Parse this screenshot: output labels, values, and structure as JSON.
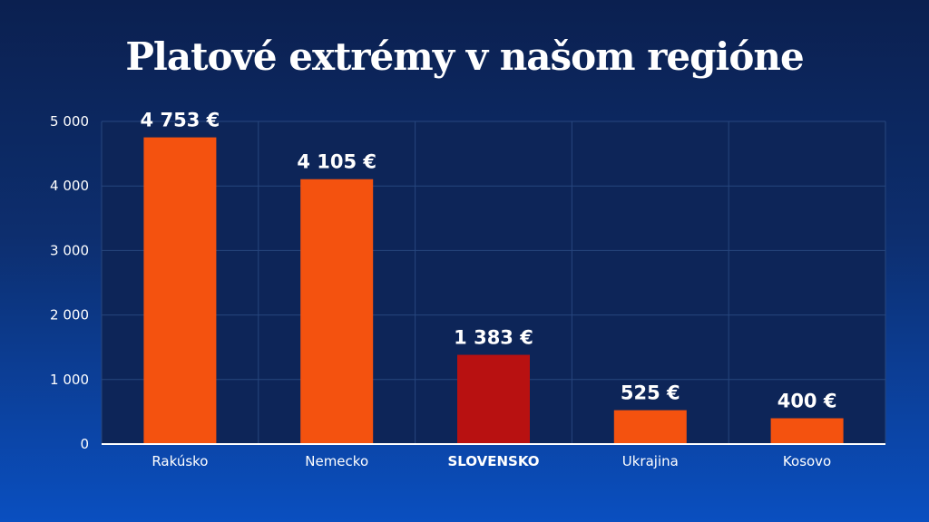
{
  "chart_data": {
    "type": "bar",
    "title": "Platové extrémy v našom regióne",
    "categories": [
      "Rakúsko",
      "Nemecko",
      "SLOVENSKO",
      "Ukrajina",
      "Kosovo"
    ],
    "values": [
      4753,
      4105,
      1383,
      525,
      400
    ],
    "data_labels": [
      "4 753 €",
      "4 105 €",
      "1 383 €",
      "525 €",
      "400 €"
    ],
    "highlight_category": "SLOVENSKO",
    "ylim": [
      0,
      5000
    ],
    "yticks": [
      0,
      1000,
      2000,
      3000,
      4000,
      5000
    ],
    "ytick_labels": [
      "0",
      "1 000",
      "2 000",
      "3 000",
      "4 000",
      "5 000"
    ],
    "xlabel": "",
    "ylabel": "",
    "grid": true,
    "colors": {
      "bar": "#f4520f",
      "bar_highlight": "#b81111",
      "plot_bg": "#0d2558",
      "grid": "#27467e",
      "axis": "#ffffff",
      "text": "#ffffff"
    }
  }
}
